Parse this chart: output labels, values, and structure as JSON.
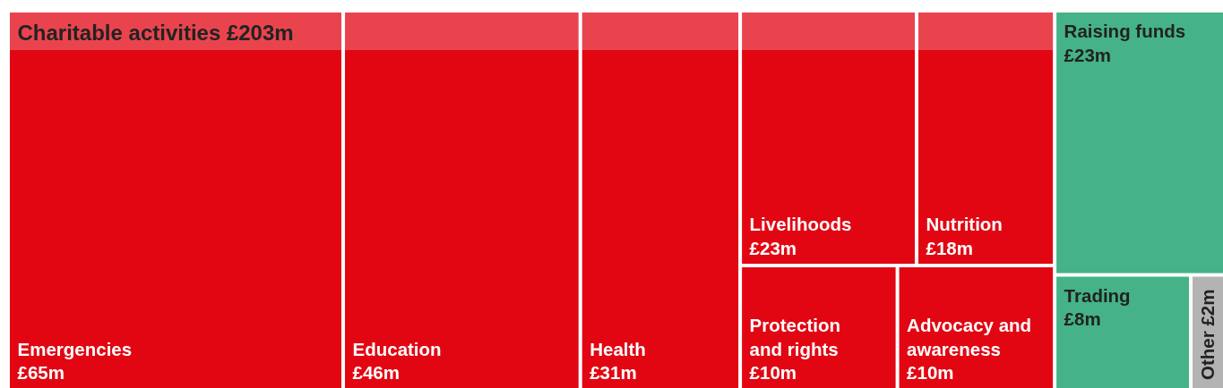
{
  "chart_data": {
    "type": "other",
    "categories": [
      "Emergencies",
      "Education",
      "Health",
      "Livelihoods",
      "Nutrition",
      "Protection and rights",
      "Advocacy and awareness",
      "Raising funds",
      "Trading",
      "Other"
    ],
    "series": [
      {
        "name": "Charitable activities £203m",
        "color": "#e20613",
        "values": [
          65,
          46,
          31,
          23,
          18,
          10,
          10,
          null,
          null,
          null
        ],
        "value_labels": [
          "£65m",
          "£46m",
          "£31m",
          "£23m",
          "£18m",
          "£10m",
          "£10m",
          null,
          null,
          null
        ]
      },
      {
        "color": "#45b387",
        "values": [
          null,
          null,
          null,
          null,
          null,
          null,
          null,
          23,
          8,
          null
        ],
        "value_labels": [
          null,
          null,
          null,
          null,
          null,
          null,
          null,
          "£23m",
          "£8m",
          null
        ]
      },
      {
        "color": "#b3b3b3",
        "values": [
          null,
          null,
          null,
          null,
          null,
          null,
          null,
          null,
          null,
          2
        ],
        "value_labels": [
          null,
          null,
          null,
          null,
          null,
          null,
          null,
          null,
          null,
          "£2m"
        ]
      }
    ]
  }
}
